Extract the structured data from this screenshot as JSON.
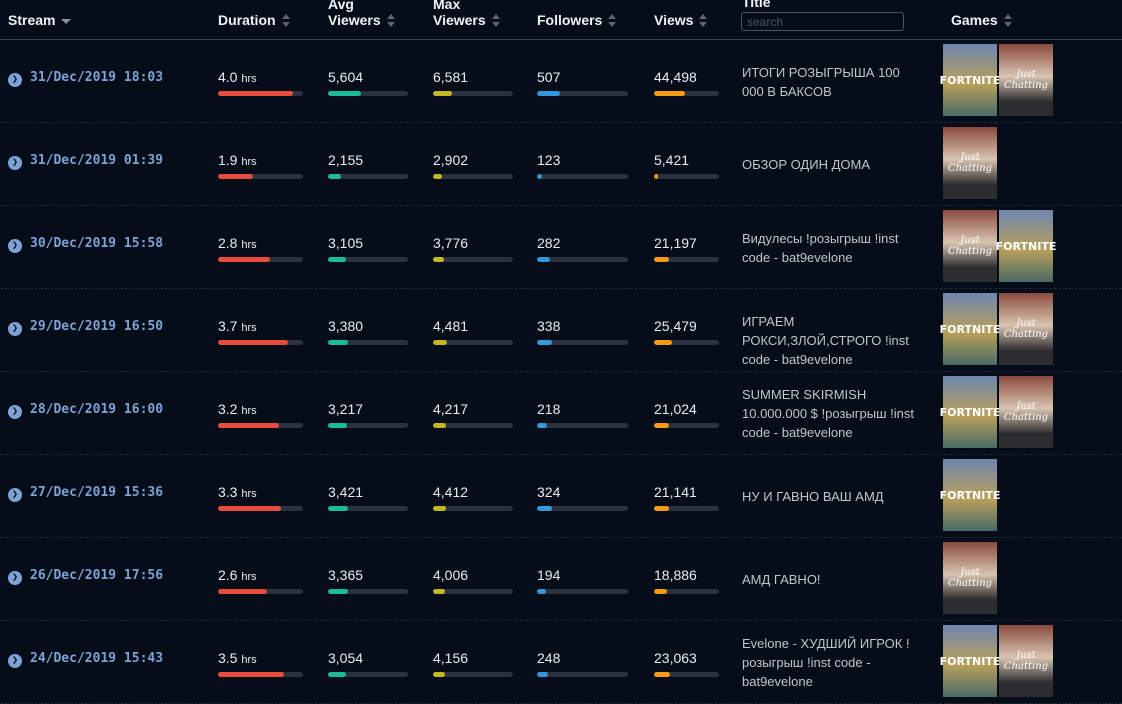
{
  "header": {
    "stream": "Stream",
    "duration": "Duration",
    "avg_viewers": "Avg\nViewers",
    "max_viewers": "Max\nViewers",
    "followers": "Followers",
    "views": "Views",
    "title": "Title",
    "search_placeholder": "search",
    "games": "Games"
  },
  "colors": {
    "duration": "#e74c3c",
    "avg_viewers": "#1abc9c",
    "max_viewers": "#c4b820",
    "followers": "#3498db",
    "views": "#f39c12"
  },
  "rows": [
    {
      "date": "31/Dec/2019 18:03",
      "duration": "4.0",
      "unit": "hrs",
      "avg": "5,604",
      "max": "6,581",
      "followers": "507",
      "views": "44,498",
      "title": "ИТОГИ РОЗЫГРЫША 100 000 В БАКСОВ",
      "games": [
        "FORTNITE",
        "Just Chatting"
      ],
      "bars": [
        88,
        41,
        24,
        25,
        48
      ]
    },
    {
      "date": "31/Dec/2019 01:39",
      "duration": "1.9",
      "unit": "hrs",
      "avg": "2,155",
      "max": "2,902",
      "followers": "123",
      "views": "5,421",
      "title": "ОБЗОР ОДИН ДОМА",
      "games": [
        "Just Chatting"
      ],
      "bars": [
        41,
        16,
        11,
        6,
        6
      ]
    },
    {
      "date": "30/Dec/2019 15:58",
      "duration": "2.8",
      "unit": "hrs",
      "avg": "3,105",
      "max": "3,776",
      "followers": "282",
      "views": "21,197",
      "title": "Видулесы !розыгрыш !inst code - bat9evelone",
      "games": [
        "Just Chatting",
        "FORTNITE"
      ],
      "bars": [
        61,
        23,
        14,
        14,
        23
      ]
    },
    {
      "date": "29/Dec/2019 16:50",
      "duration": "3.7",
      "unit": "hrs",
      "avg": "3,380",
      "max": "4,481",
      "followers": "338",
      "views": "25,479",
      "title": "ИГРАЕМ РОКСИ,ЗЛОЙ,СТРОГО !inst code - bat9evelone",
      "games": [
        "FORTNITE",
        "Just Chatting"
      ],
      "bars": [
        82,
        25,
        17,
        17,
        27
      ]
    },
    {
      "date": "28/Dec/2019 16:00",
      "duration": "3.2",
      "unit": "hrs",
      "avg": "3,217",
      "max": "4,217",
      "followers": "218",
      "views": "21,024",
      "title": "SUMMER SKIRMISH 10.000.000 $ !розыгрыш !inst code - bat9evelone",
      "games": [
        "FORTNITE",
        "Just Chatting"
      ],
      "bars": [
        72,
        24,
        16,
        11,
        23
      ]
    },
    {
      "date": "27/Dec/2019 15:36",
      "duration": "3.3",
      "unit": "hrs",
      "avg": "3,421",
      "max": "4,412",
      "followers": "324",
      "views": "21,141",
      "title": "НУ И ГАВНО ВАШ АМД",
      "games": [
        "FORTNITE"
      ],
      "bars": [
        74,
        25,
        16,
        16,
        23
      ]
    },
    {
      "date": "26/Dec/2019 17:56",
      "duration": "2.6",
      "unit": "hrs",
      "avg": "3,365",
      "max": "4,006",
      "followers": "194",
      "views": "18,886",
      "title": "АМД ГАВНО!",
      "games": [
        "Just Chatting"
      ],
      "bars": [
        58,
        25,
        15,
        10,
        20
      ]
    },
    {
      "date": "24/Dec/2019 15:43",
      "duration": "3.5",
      "unit": "hrs",
      "avg": "3,054",
      "max": "4,156",
      "followers": "248",
      "views": "23,063",
      "title": "Evelone - ХУДШИЙ ИГРОК ! розыгрыш !inst code - bat9evelone",
      "games": [
        "FORTNITE",
        "Just Chatting"
      ],
      "bars": [
        78,
        22,
        15,
        12,
        25
      ]
    }
  ]
}
